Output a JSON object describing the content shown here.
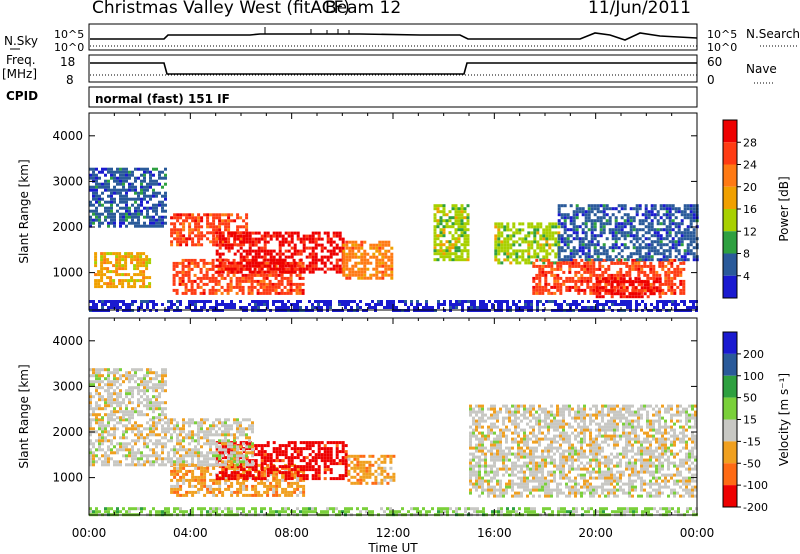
{
  "header": {
    "station": "Christmas Valley West (fitACF)",
    "beam": "Beam 12",
    "date": "11/Jun/2011"
  },
  "control": {
    "nsky_label": "N.Sky",
    "nsky_ticks": [
      "10^5",
      "10^0"
    ],
    "freq_label": "Freq.",
    "freq_unit": "[MHz]",
    "freq_ticks": [
      "18",
      "8"
    ],
    "cpid_label": "CPID",
    "cpid_value": "normal (fast) 151 IF",
    "nsearch_label": "N.Search",
    "nsearch_ticks": [
      "10^5",
      "10^0"
    ],
    "nave_label": "Nave",
    "nave_ticks": [
      "60",
      "0"
    ]
  },
  "chart_data": [
    {
      "type": "heatmap",
      "name": "power",
      "ylabel": "Slant Range [km]",
      "yticks": [
        "4000",
        "3000",
        "2000",
        "1000"
      ],
      "ylim": [
        180,
        4500
      ],
      "xlim_hours": [
        0,
        24
      ],
      "colorbar_label": "Power [dB]",
      "colorbar_ticks": [
        "28",
        "24",
        "20",
        "16",
        "12",
        "8",
        "4"
      ],
      "colors": [
        "#ee0000",
        "#ff3c14",
        "#ff7a14",
        "#f0a000",
        "#a8d000",
        "#2ea040",
        "#2a5a9a",
        "#1a1ad0"
      ],
      "regions": [
        {
          "t0": 3.2,
          "t1": 6.2,
          "r0": 1600,
          "r1": 2300,
          "level": 1
        },
        {
          "t0": 3.3,
          "t1": 8.5,
          "r0": 550,
          "r1": 1300,
          "level": 1
        },
        {
          "t0": 5.0,
          "t1": 10.0,
          "r0": 1000,
          "r1": 1900,
          "level": 0
        },
        {
          "t0": 10.0,
          "t1": 12.0,
          "r0": 900,
          "r1": 1700,
          "level": 2
        },
        {
          "t0": 0.2,
          "t1": 2.4,
          "r0": 700,
          "r1": 1450,
          "level": 3
        },
        {
          "t0": 0.0,
          "t1": 3.0,
          "r0": 2000,
          "r1": 3300,
          "level": 6
        },
        {
          "t0": 13.6,
          "t1": 15.0,
          "r0": 1300,
          "r1": 2500,
          "level": 4
        },
        {
          "t0": 16.0,
          "t1": 18.5,
          "r0": 1200,
          "r1": 2100,
          "level": 4
        },
        {
          "t0": 17.5,
          "t1": 23.5,
          "r0": 550,
          "r1": 1300,
          "level": 1
        },
        {
          "t0": 20.0,
          "t1": 22.5,
          "r0": 500,
          "r1": 900,
          "level": 0
        },
        {
          "t0": 18.5,
          "t1": 24.0,
          "r0": 1300,
          "r1": 2500,
          "level": 6
        },
        {
          "t0": 0.0,
          "t1": 24.0,
          "r0": 180,
          "r1": 400,
          "level": 7
        }
      ]
    },
    {
      "type": "heatmap",
      "name": "velocity",
      "ylabel": "Slant Range [km]",
      "yticks": [
        "4000",
        "3000",
        "2000",
        "1000"
      ],
      "ylim": [
        180,
        4500
      ],
      "xlim_hours": [
        0,
        24
      ],
      "xlabel": "Time UT",
      "xticks": [
        "00:00",
        "04:00",
        "08:00",
        "12:00",
        "16:00",
        "20:00",
        "00:00"
      ],
      "colorbar_label": "Velocity [m s⁻¹]",
      "colorbar_ticks": [
        "200",
        "100",
        "50",
        "15",
        "-15",
        "-50",
        "-100",
        "-200"
      ],
      "colors": [
        "#1a1ad0",
        "#2a5a9a",
        "#2ea040",
        "#7ad03a",
        "#c8c8c4",
        "#f0a020",
        "#ff6a14",
        "#ee0000"
      ],
      "regions": [
        {
          "t0": 3.2,
          "t1": 8.5,
          "r0": 600,
          "r1": 1300,
          "level": 5
        },
        {
          "t0": 5.0,
          "t1": 10.2,
          "r0": 1000,
          "r1": 1800,
          "level": 7
        },
        {
          "t0": 10.2,
          "t1": 12.0,
          "r0": 900,
          "r1": 1500,
          "level": 5
        },
        {
          "t0": 0.0,
          "t1": 6.5,
          "r0": 1300,
          "r1": 2300,
          "level": 4
        },
        {
          "t0": 0.0,
          "t1": 3.0,
          "r0": 2300,
          "r1": 3400,
          "level": 4
        },
        {
          "t0": 15.0,
          "t1": 24.0,
          "r0": 600,
          "r1": 2600,
          "level": 4
        },
        {
          "t0": 0.0,
          "t1": 24.0,
          "r0": 180,
          "r1": 350,
          "level": 3
        }
      ]
    }
  ]
}
